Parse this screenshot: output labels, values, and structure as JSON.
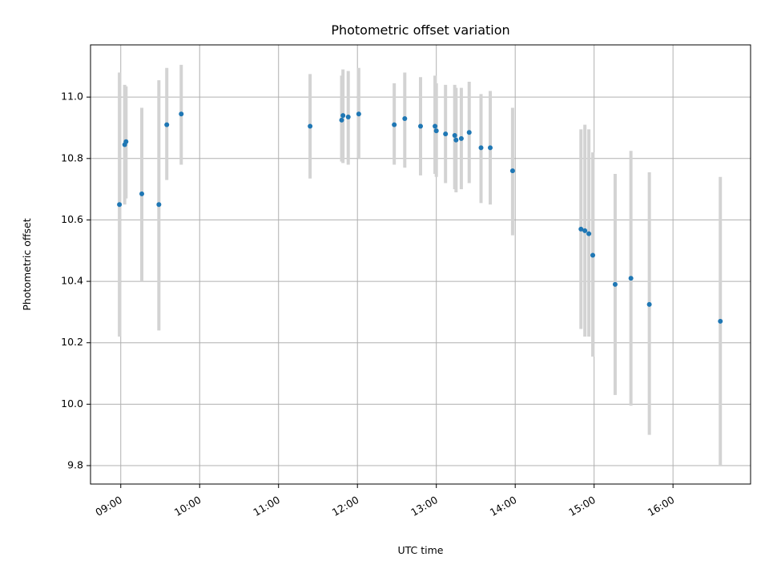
{
  "chart_data": {
    "type": "scatter",
    "title": "Photometric offset variation",
    "xlabel": "UTC time",
    "ylabel": "Photometric offset",
    "grid": true,
    "xlim": [
      "08:37",
      "16:59"
    ],
    "ylim": [
      9.74,
      11.17
    ],
    "x_ticks": [
      "09:00",
      "10:00",
      "11:00",
      "12:00",
      "13:00",
      "14:00",
      "15:00",
      "16:00"
    ],
    "y_ticks": [
      9.8,
      10.0,
      10.2,
      10.4,
      10.6,
      10.8,
      11.0
    ],
    "y_tick_labels": [
      "9.8",
      "10.0",
      "10.2",
      "10.4",
      "10.6",
      "10.8",
      "11.0"
    ],
    "colors": {
      "point": "#1f77b4",
      "errorbar": "#d3d3d3",
      "grid": "#b0b0b0"
    },
    "points": [
      {
        "x": "08:59",
        "y": 10.65,
        "lo": 10.22,
        "hi": 11.08
      },
      {
        "x": "09:03",
        "y": 10.845,
        "lo": 10.65,
        "hi": 11.04
      },
      {
        "x": "09:04",
        "y": 10.855,
        "lo": 10.67,
        "hi": 11.035
      },
      {
        "x": "09:16",
        "y": 10.685,
        "lo": 10.4,
        "hi": 10.965
      },
      {
        "x": "09:29",
        "y": 10.65,
        "lo": 10.24,
        "hi": 11.055
      },
      {
        "x": "09:35",
        "y": 10.91,
        "lo": 10.73,
        "hi": 11.095
      },
      {
        "x": "09:46",
        "y": 10.945,
        "lo": 10.78,
        "hi": 11.105
      },
      {
        "x": "11:24",
        "y": 10.905,
        "lo": 10.735,
        "hi": 11.075
      },
      {
        "x": "11:48",
        "y": 10.925,
        "lo": 10.79,
        "hi": 11.07
      },
      {
        "x": "11:49",
        "y": 10.94,
        "lo": 10.785,
        "hi": 11.09
      },
      {
        "x": "11:53",
        "y": 10.935,
        "lo": 10.78,
        "hi": 11.085
      },
      {
        "x": "12:01",
        "y": 10.945,
        "lo": 10.8,
        "hi": 11.095
      },
      {
        "x": "12:28",
        "y": 10.91,
        "lo": 10.78,
        "hi": 11.045
      },
      {
        "x": "12:36",
        "y": 10.93,
        "lo": 10.77,
        "hi": 11.08
      },
      {
        "x": "12:48",
        "y": 10.905,
        "lo": 10.745,
        "hi": 11.065
      },
      {
        "x": "12:59",
        "y": 10.905,
        "lo": 10.75,
        "hi": 11.07
      },
      {
        "x": "13:00",
        "y": 10.89,
        "lo": 10.74,
        "hi": 11.045
      },
      {
        "x": "13:07",
        "y": 10.88,
        "lo": 10.72,
        "hi": 11.04
      },
      {
        "x": "13:14",
        "y": 10.875,
        "lo": 10.7,
        "hi": 11.04
      },
      {
        "x": "13:15",
        "y": 10.86,
        "lo": 10.69,
        "hi": 11.03
      },
      {
        "x": "13:19",
        "y": 10.865,
        "lo": 10.7,
        "hi": 11.03
      },
      {
        "x": "13:25",
        "y": 10.885,
        "lo": 10.72,
        "hi": 11.05
      },
      {
        "x": "13:34",
        "y": 10.835,
        "lo": 10.655,
        "hi": 11.01
      },
      {
        "x": "13:41",
        "y": 10.835,
        "lo": 10.65,
        "hi": 11.02
      },
      {
        "x": "13:58",
        "y": 10.76,
        "lo": 10.55,
        "hi": 10.965
      },
      {
        "x": "14:50",
        "y": 10.57,
        "lo": 10.245,
        "hi": 10.895
      },
      {
        "x": "14:53",
        "y": 10.565,
        "lo": 10.22,
        "hi": 10.91
      },
      {
        "x": "14:56",
        "y": 10.555,
        "lo": 10.22,
        "hi": 10.895
      },
      {
        "x": "14:59",
        "y": 10.485,
        "lo": 10.155,
        "hi": 10.82
      },
      {
        "x": "15:16",
        "y": 10.39,
        "lo": 10.03,
        "hi": 10.75
      },
      {
        "x": "15:28",
        "y": 10.41,
        "lo": 9.995,
        "hi": 10.825
      },
      {
        "x": "15:42",
        "y": 10.325,
        "lo": 9.9,
        "hi": 10.755
      },
      {
        "x": "16:36",
        "y": 10.27,
        "lo": 9.8,
        "hi": 10.74
      }
    ]
  }
}
